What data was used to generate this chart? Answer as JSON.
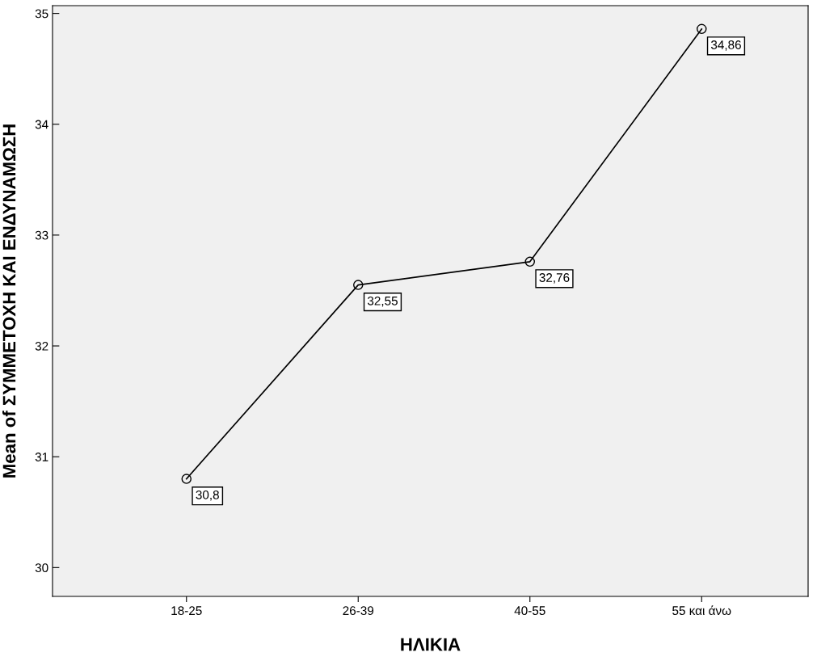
{
  "chart_data": {
    "type": "line",
    "xlabel": "ΗΛΙΚΙΑ",
    "ylabel": "Mean of ΣΥΜΜΕΤΟΧΗ ΚΑΙ ΕΝΔΥΝΑΜΩΣΗ",
    "categories": [
      "18-25",
      "26-39",
      "40-55",
      "55 και άνω"
    ],
    "series": [
      {
        "color": "#000000",
        "values": [
          30.8,
          32.55,
          32.76,
          34.86
        ],
        "value_labels": [
          "30,8",
          "32,55",
          "32,76",
          "34,86"
        ]
      }
    ],
    "ylim": [
      29.74,
      35.07
    ],
    "yticks": [
      30,
      31,
      32,
      33,
      34,
      35
    ],
    "grid": false,
    "legend": false,
    "marker": "circle",
    "line_style": "solid"
  }
}
